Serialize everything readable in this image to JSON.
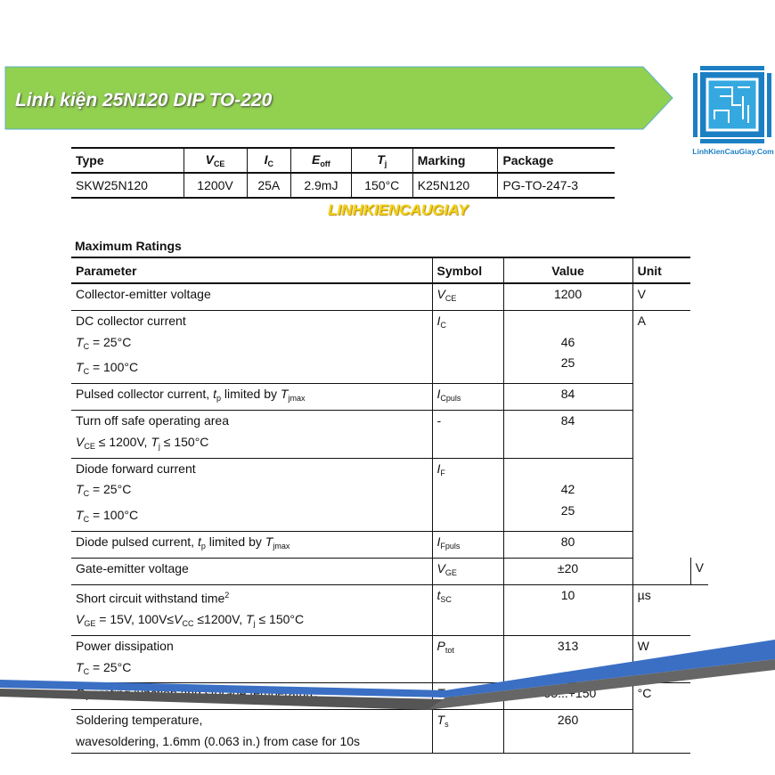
{
  "banner": {
    "title": "Linh kiện 25N120 DIP TO-220",
    "color": "#92d050"
  },
  "logo": {
    "text": "LinhKienCauGiay.Com",
    "color": "#1c7fc4"
  },
  "watermark": "LINHKIENCAUGIAY",
  "summary_table": {
    "headers": [
      "Type",
      "<i>V</i><sub>CE</sub>",
      "<i>I</i><sub>C</sub>",
      "<i>E</i><sub>off</sub>",
      "<i>T</i><sub>j</sub>",
      "Marking",
      "Package"
    ],
    "row": [
      "SKW25N120",
      "1200V",
      "25A",
      "2.9mJ",
      "150°C",
      "K25N120",
      "PG-TO-247-3"
    ]
  },
  "max_ratings": {
    "title": "Maximum Ratings",
    "headers": [
      "Parameter",
      "Symbol",
      "Value",
      "Unit"
    ],
    "rows": [
      {
        "param": [
          "Collector-emitter voltage"
        ],
        "symbol": "<i>V</i><sub>CE</sub>",
        "value": [
          "1200"
        ],
        "unit": "V",
        "unit_span": 1
      },
      {
        "param": [
          "DC collector current",
          "<i>T</i><sub>C</sub> = 25°C",
          "<i>T</i><sub>C</sub> = 100°C"
        ],
        "symbol": "<i>I</i><sub>C</sub>",
        "value": [
          "",
          "46",
          "25"
        ],
        "unit": "A",
        "unit_span": 6
      },
      {
        "param": [
          "Pulsed collector current, <i>t</i><sub>p</sub> limited by <i>T</i><sub>jmax</sub>"
        ],
        "symbol": "<i>I</i><sub>Cpuls</sub>",
        "value": [
          "84"
        ]
      },
      {
        "param": [
          "Turn off safe operating area",
          "<i>V</i><sub>CE</sub> ≤ 1200V, <i>T</i><sub>j</sub> ≤ 150°C"
        ],
        "symbol": "-",
        "value": [
          "84"
        ]
      },
      {
        "param": [
          "Diode forward current",
          "<i>T</i><sub>C</sub> = 25°C",
          "<i>T</i><sub>C</sub> = 100°C"
        ],
        "symbol": "<i>I</i><sub>F</sub>",
        "value": [
          "",
          "42",
          "25"
        ]
      },
      {
        "param": [
          "Diode pulsed current, <i>t</i><sub>p</sub> limited by <i>T</i><sub>jmax</sub>"
        ],
        "symbol": "<i>I</i><sub>Fpuls</sub>",
        "value": [
          "80"
        ]
      },
      {
        "param": [
          "Gate-emitter voltage"
        ],
        "symbol": "<i>V</i><sub>GE</sub>",
        "value": [
          "±20"
        ],
        "unit": "V",
        "unit_span": 1
      },
      {
        "param": [
          "Short circuit withstand time<sup>2</sup>",
          "<i>V</i><sub>GE</sub> = 15V, 100V≤<i>V</i><sub>CC</sub> ≤1200V, <i>T</i><sub>j</sub> ≤ 150°C"
        ],
        "symbol": "<i>t</i><sub>SC</sub>",
        "value": [
          "10"
        ],
        "unit": "µs",
        "unit_span": 1
      },
      {
        "param": [
          "Power dissipation",
          "<i>T</i><sub>C</sub> = 25°C"
        ],
        "symbol": "<i>P</i><sub>tot</sub>",
        "value": [
          "313"
        ],
        "unit": "W",
        "unit_span": 1
      },
      {
        "param": [
          "Operating junction and storage temperature"
        ],
        "symbol": "<i>T</i><sub>j</sub> , <i>T</i><sub>stg</sub>",
        "value": [
          "-55...+150"
        ],
        "unit": "°C",
        "unit_span": 2
      },
      {
        "param": [
          "Soldering temperature,",
          "wavesoldering, 1.6mm (0.063 in.) from case for 10s"
        ],
        "symbol": "<i>T</i><sub>s</sub>",
        "value": [
          "260"
        ]
      }
    ]
  },
  "colors": {
    "swoosh_blue": "#3a6fc4",
    "swoosh_gray": "#555555"
  }
}
